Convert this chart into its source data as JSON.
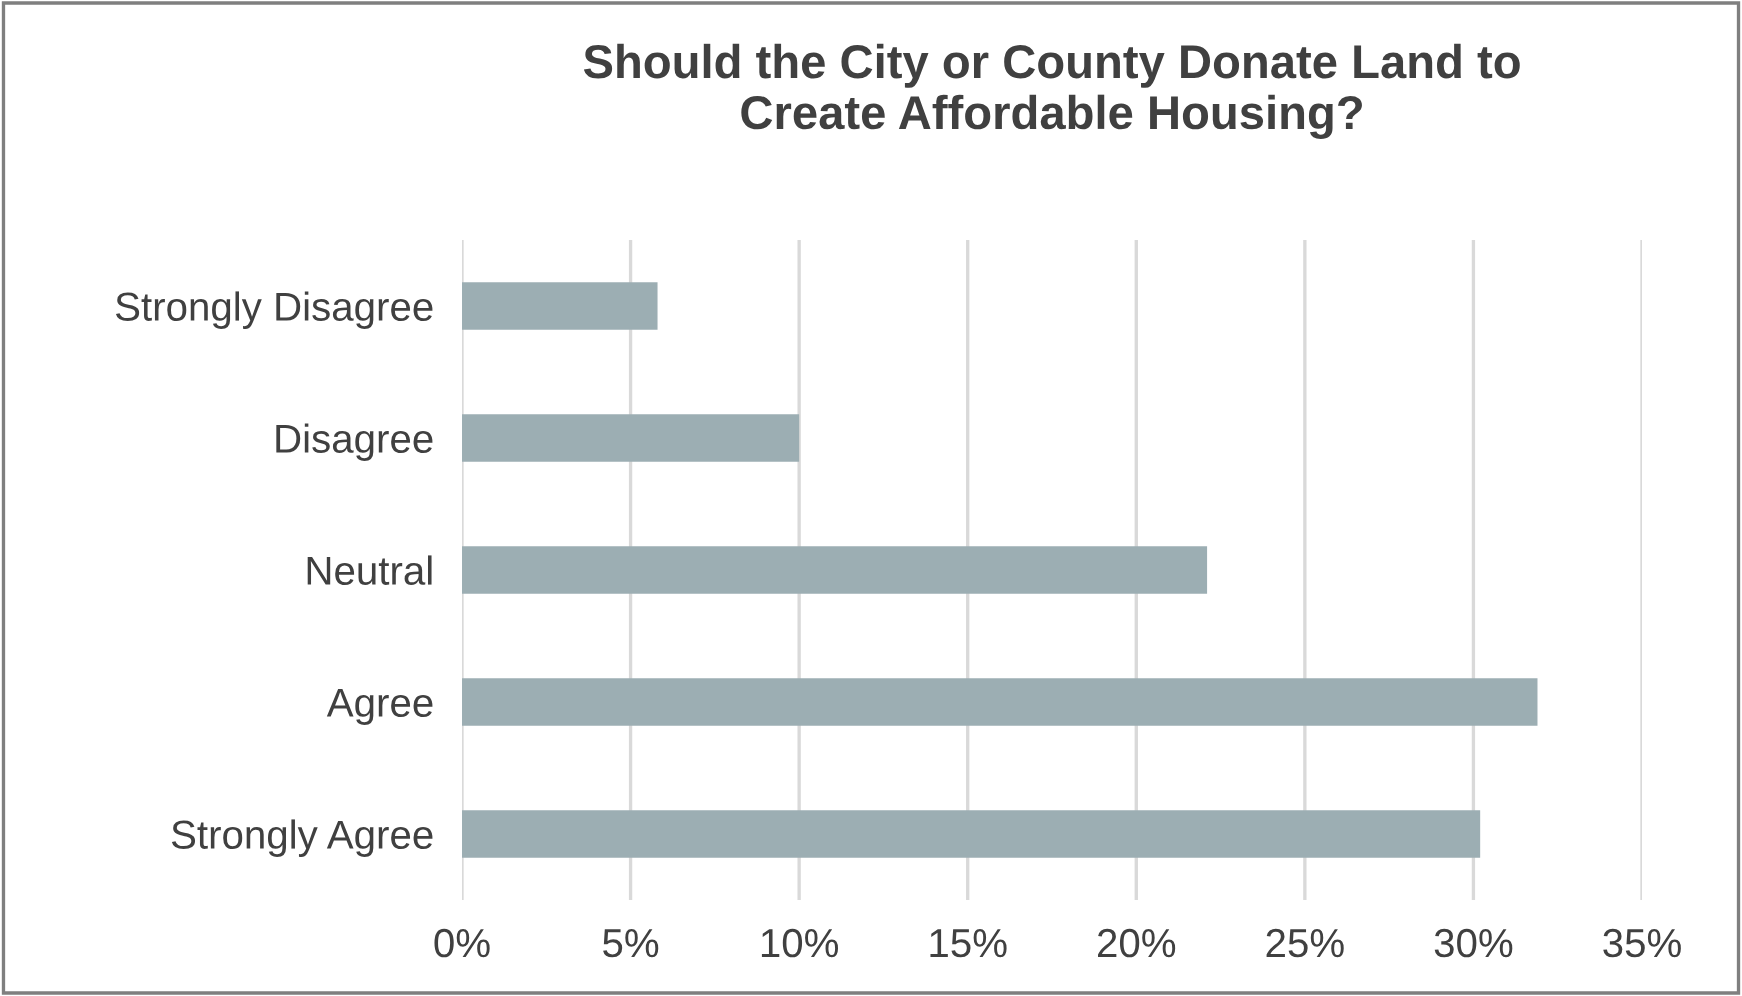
{
  "chart_data": {
    "type": "bar",
    "orientation": "horizontal",
    "title": "Should the City or County Donate Land to\nCreate Affordable Housing?",
    "categories": [
      "Strongly Disagree",
      "Disagree",
      "Neutral",
      "Agree",
      "Strongly Agree"
    ],
    "values": [
      5.8,
      10.0,
      22.1,
      31.9,
      30.2
    ],
    "color": "#9caeb3",
    "xlim": [
      0,
      35
    ],
    "xticks": [
      {
        "value": 0,
        "label": "0%"
      },
      {
        "value": 5,
        "label": "5%"
      },
      {
        "value": 10,
        "label": "10%"
      },
      {
        "value": 15,
        "label": "15%"
      },
      {
        "value": 20,
        "label": "20%"
      },
      {
        "value": 25,
        "label": "25%"
      },
      {
        "value": 30,
        "label": "30%"
      },
      {
        "value": 35,
        "label": "35%"
      }
    ],
    "grid": "x"
  }
}
